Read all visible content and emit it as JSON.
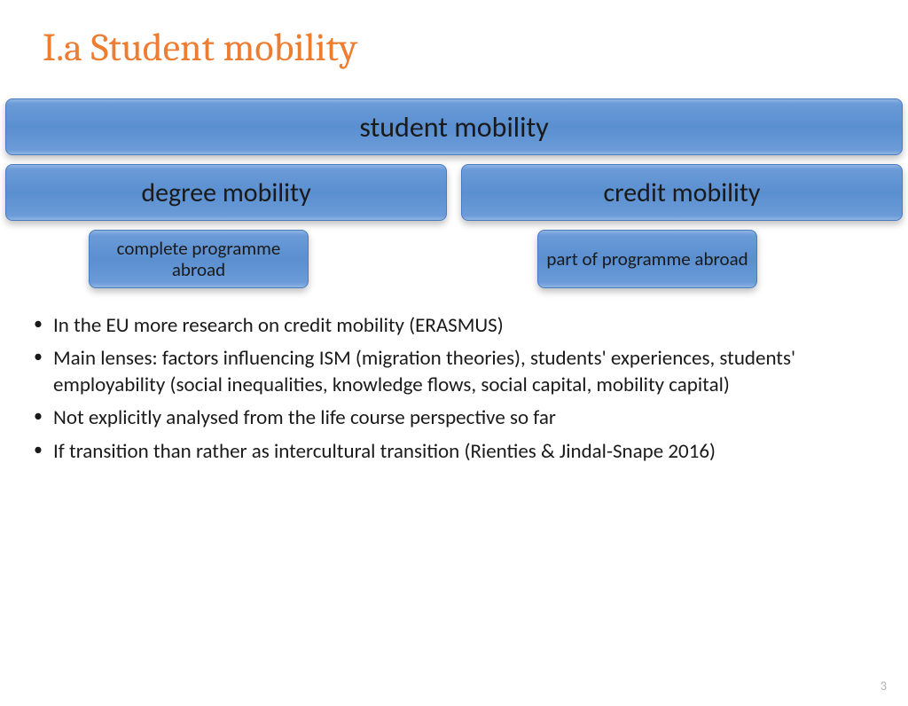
{
  "title": "I.a Student mobility",
  "diagram": {
    "top": "student mobility",
    "left_mid": "degree mobility",
    "right_mid": "credit mobility",
    "left_small": "complete programme abroad",
    "right_small": "part of programme abroad"
  },
  "bullets": [
    "In the EU more research on credit mobility (ERASMUS)",
    "Main lenses: factors influencing ISM (migration theories), students' experiences, students' employability (social inequalities, knowledge flows, social capital, mobility capital)",
    "Not explicitly analysed from the life course perspective so far",
    "If transition than rather as intercultural transition (Rienties & Jindal-Snape 2016)"
  ],
  "page_number": "3",
  "colors": {
    "title_color": "#ed7d31",
    "box_gradient_top": "#8fb4e3",
    "box_gradient_mid": "#5a8fd0",
    "box_border": "#4a7bc0",
    "text": "#1a1a1a",
    "pagenum": "#b0b0b0",
    "background": "#ffffff"
  },
  "typography": {
    "title_font": "Cambria",
    "body_font": "Calibri",
    "title_size_pt": 33,
    "box_top_size_pt": 24,
    "box_mid_size_pt": 22,
    "box_small_size_pt": 16,
    "bullet_size_pt": 17
  },
  "layout": {
    "type": "hierarchy-tree",
    "levels": 3,
    "slide_width": 1024,
    "slide_height": 768
  }
}
